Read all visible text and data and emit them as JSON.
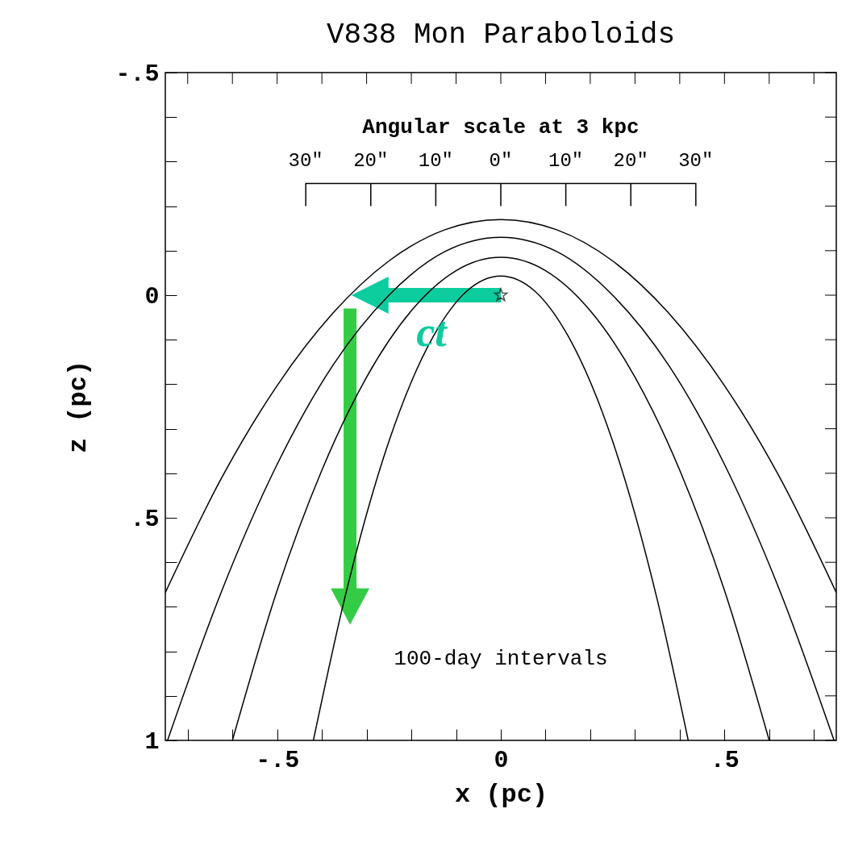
{
  "chart_data": {
    "type": "line",
    "title": "V838 Mon Paraboloids",
    "xlabel": "x (pc)",
    "ylabel": "z (pc)",
    "xlim": [
      -0.75,
      0.75
    ],
    "ylim": [
      1,
      -0.5
    ],
    "xticks": [
      {
        "value": -0.7,
        "label": null
      },
      {
        "value": -0.6,
        "label": null
      },
      {
        "value": -0.5,
        "label": "-.5"
      },
      {
        "value": -0.4,
        "label": null
      },
      {
        "value": -0.3,
        "label": null
      },
      {
        "value": -0.2,
        "label": null
      },
      {
        "value": -0.1,
        "label": null
      },
      0,
      {
        "value": 0.1,
        "label": null
      },
      {
        "value": 0.2,
        "label": null
      },
      {
        "value": 0.3,
        "label": null
      },
      {
        "value": 0.4,
        "label": null
      },
      {
        "value": 0.5,
        "label": ".5"
      },
      {
        "value": 0.6,
        "label": null
      },
      {
        "value": 0.7,
        "label": null
      }
    ],
    "yticks": [
      {
        "value": -0.5,
        "label": "-.5"
      },
      {
        "value": -0.4,
        "label": null
      },
      {
        "value": -0.3,
        "label": null
      },
      {
        "value": -0.2,
        "label": null
      },
      {
        "value": -0.1,
        "label": null
      },
      0,
      {
        "value": 0.1,
        "label": null
      },
      {
        "value": 0.2,
        "label": null
      },
      {
        "value": 0.3,
        "label": null
      },
      {
        "value": 0.4,
        "label": null
      },
      {
        "value": 0.5,
        "label": ".5"
      },
      {
        "value": 0.6,
        "label": null
      },
      {
        "value": 0.7,
        "label": null
      },
      {
        "value": 0.8,
        "label": null
      },
      {
        "value": 0.9,
        "label": null
      },
      1
    ],
    "legend": false,
    "series": [
      {
        "color": "#000000",
        "x": [
          -0.75,
          -0.625,
          -0.5,
          -0.375,
          -0.25,
          -0.125,
          0,
          0.125,
          0.25,
          0.375,
          0.5,
          0.625,
          0.75
        ],
        "values": [
          0.668,
          0.412,
          0.203,
          0.04,
          -0.077,
          -0.147,
          -0.17,
          -0.147,
          -0.077,
          0.04,
          0.203,
          0.412,
          0.668
        ]
      },
      {
        "color": "#000000",
        "x": [
          -0.745,
          -0.625,
          -0.5,
          -0.375,
          -0.25,
          -0.125,
          0,
          0.125,
          0.25,
          0.375,
          0.5,
          0.625,
          0.745
        ],
        "values": [
          1.0,
          0.667,
          0.38,
          0.157,
          0.0,
          -0.098,
          -0.13,
          -0.098,
          0.0,
          0.157,
          0.38,
          0.667,
          1.0
        ]
      },
      {
        "color": "#000000",
        "x": [
          -0.6,
          -0.5,
          -0.4,
          -0.3,
          -0.2,
          -0.1,
          0,
          0.1,
          0.2,
          0.3,
          0.4,
          0.5,
          0.6
        ],
        "values": [
          1.0,
          0.663,
          0.393,
          0.184,
          0.035,
          -0.055,
          -0.085,
          -0.055,
          0.035,
          0.184,
          0.393,
          0.663,
          1.0
        ]
      },
      {
        "color": "#000000",
        "x": [
          -0.419,
          -0.35,
          -0.25,
          -0.15,
          -0.075,
          0,
          0.075,
          0.15,
          0.25,
          0.35,
          0.419
        ],
        "values": [
          1.0,
          0.685,
          0.328,
          0.091,
          -0.01,
          -0.043,
          -0.01,
          0.091,
          0.328,
          0.685,
          1.0
        ]
      },
      {
        "type": "scatter",
        "marker": "star",
        "color": "#000000",
        "x": [
          0
        ],
        "values": [
          0
        ]
      }
    ],
    "annotations": [
      "Angular scale at 3 kpc",
      "30″",
      "20″",
      "10″",
      "0″",
      "10″",
      "20″",
      "30″",
      "ct",
      "100-day intervals"
    ]
  }
}
